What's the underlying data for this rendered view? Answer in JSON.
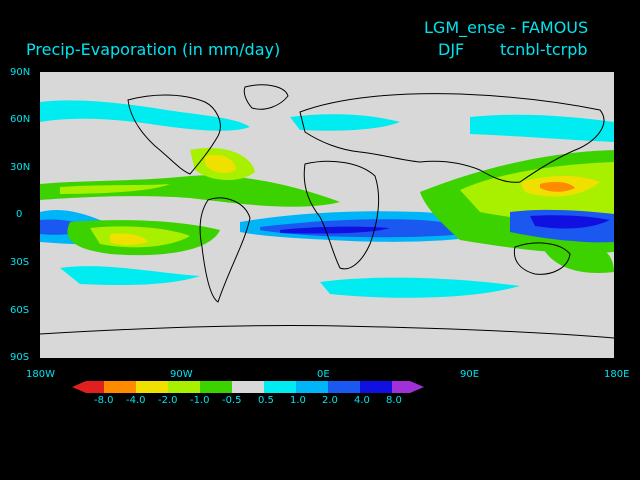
{
  "header": {
    "variable_title": "Precip-Evaporation (in mm/day)",
    "experiment": "LGM_ense - FAMOUS",
    "season": "DJF",
    "difference": "tcnbl-tcrpb"
  },
  "axes": {
    "y_ticks": [
      "90N",
      "60N",
      "30N",
      "0",
      "30S",
      "60S",
      "90S"
    ],
    "x_ticks": [
      "180W",
      "90W",
      "0E",
      "90E",
      "180E"
    ]
  },
  "colorbar": {
    "levels": [
      "-8.0",
      "-4.0",
      "-2.0",
      "-1.0",
      "-0.5",
      "0.5",
      "1.0",
      "2.0",
      "4.0",
      "8.0"
    ],
    "colors": [
      "#e0201e",
      "#ff8a00",
      "#f0e000",
      "#a8f000",
      "#3cd200",
      "#d8d8d8",
      "#00ecf0",
      "#00b4f8",
      "#1a58f0",
      "#1010e0",
      "#a030d8"
    ]
  },
  "map_colors": {
    "background": "#d8d8d8",
    "coast": "#000000"
  }
}
